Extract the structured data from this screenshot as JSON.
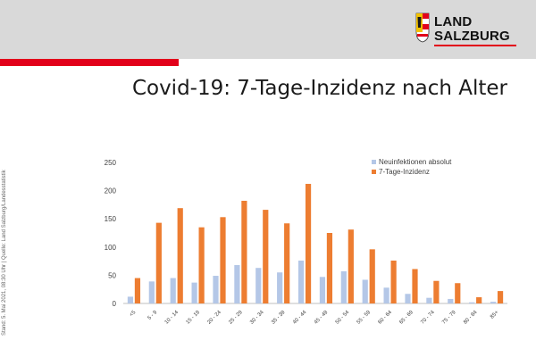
{
  "header": {
    "logo_line1": "LAND",
    "logo_line2": "SALZBURG",
    "title": "Covid-19: 7-Tage-Inzidenz nach Alter"
  },
  "source_note": "Stand: 5. Mai 2021, 08:30 Uhr | Quelle: Land Salzburg/Landesstatistik",
  "colors": {
    "header_band": "#d9d9d9",
    "accent_red": "#e2001a",
    "series_absolute": "#b4c7e7",
    "series_incidence": "#ed7d31"
  },
  "icons": {
    "coat_of_arms": "salzburg-coat-of-arms-icon"
  },
  "chart_data": {
    "type": "bar",
    "title": "",
    "xlabel": "",
    "ylabel": "",
    "ylim": [
      0,
      250
    ],
    "yticks": [
      0,
      50,
      100,
      150,
      200,
      250
    ],
    "grid": false,
    "legend_position": "top-right",
    "categories": [
      "<5",
      "5 - 9",
      "10 - 14",
      "15 - 19",
      "20 - 24",
      "25 - 29",
      "30 - 34",
      "35 - 39",
      "40 - 44",
      "45 - 49",
      "50 - 54",
      "55 - 59",
      "60 - 64",
      "65 - 69",
      "70 - 74",
      "75 - 79",
      "80 - 84",
      "85+"
    ],
    "series": [
      {
        "name": "Neuinfektionen absolut",
        "color": "#b4c7e7",
        "values": [
          12,
          39,
          45,
          37,
          49,
          68,
          63,
          55,
          76,
          47,
          57,
          42,
          28,
          17,
          10,
          8,
          2,
          3
        ]
      },
      {
        "name": "7-Tage-Inzidenz",
        "color": "#ed7d31",
        "values": [
          45,
          143,
          169,
          135,
          153,
          182,
          166,
          142,
          212,
          125,
          131,
          96,
          76,
          61,
          40,
          36,
          11,
          22
        ]
      }
    ]
  }
}
